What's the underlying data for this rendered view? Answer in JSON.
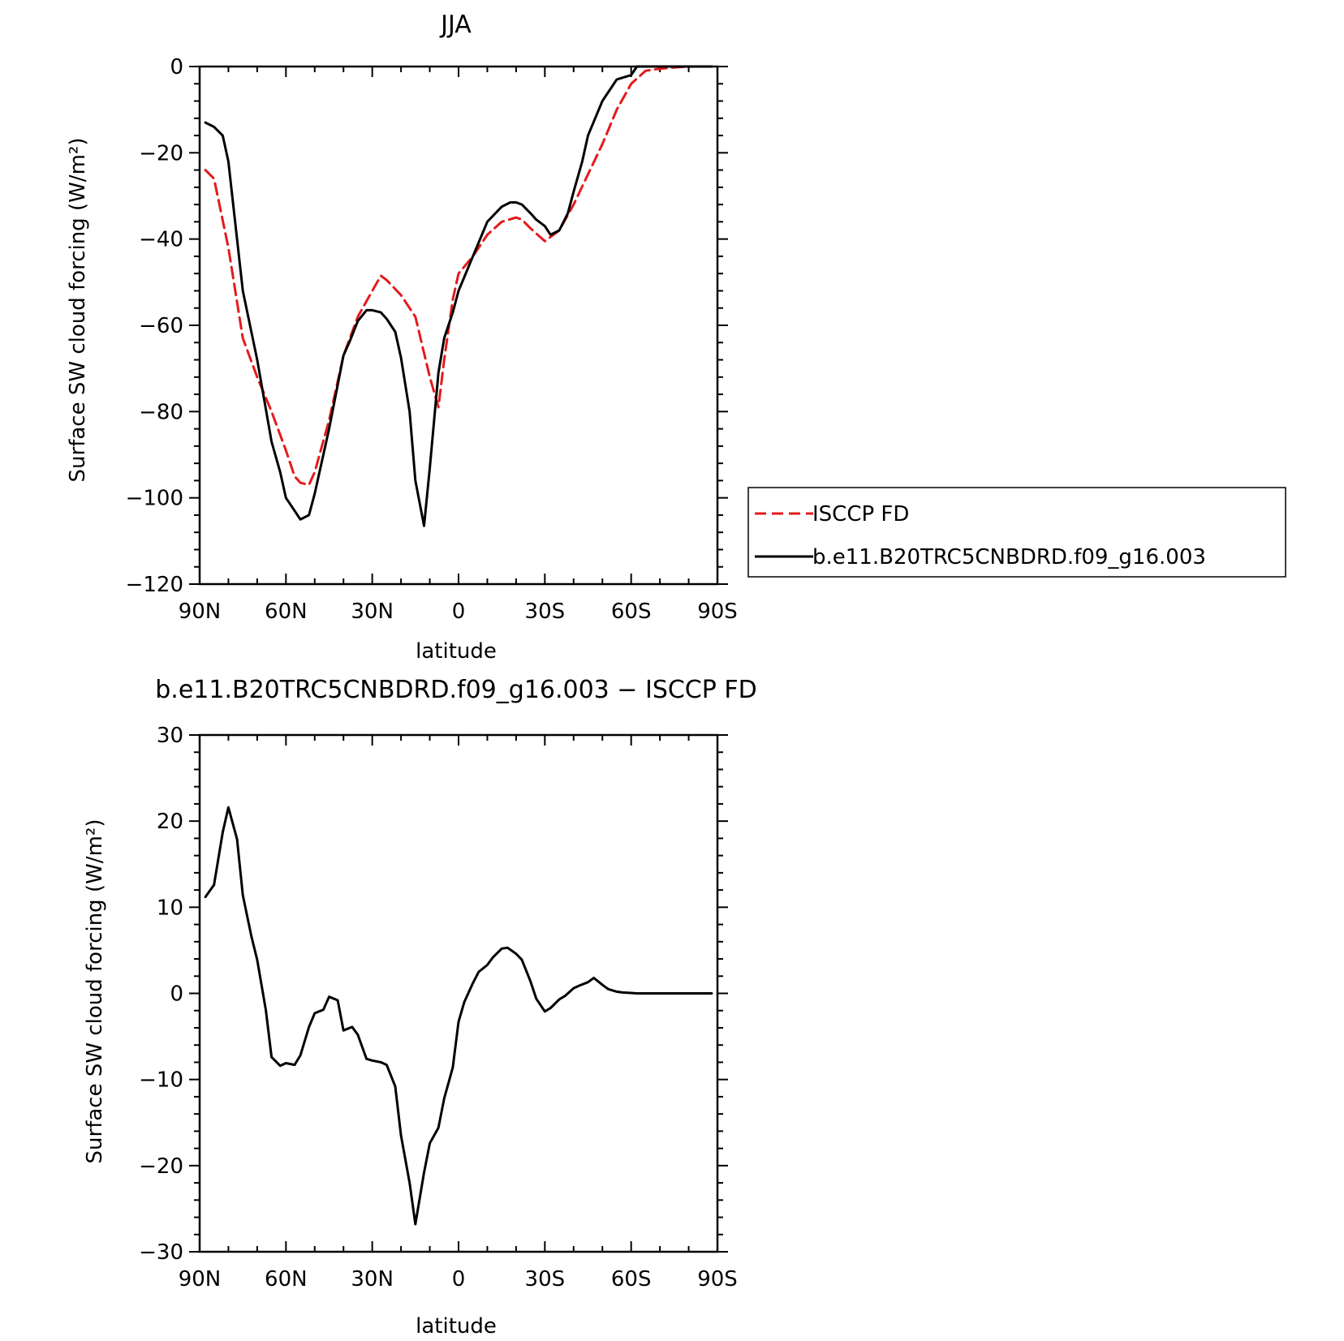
{
  "chart_data": [
    {
      "type": "line",
      "title": "JJA",
      "xlabel": "latitude",
      "ylabel": "Surface SW cloud forcing (W/m²)",
      "xlim": [
        90,
        -90
      ],
      "ylim": [
        -120,
        0
      ],
      "xticks": [
        90,
        60,
        30,
        0,
        -30,
        -60,
        -90
      ],
      "xtick_labels": [
        "90N",
        "60N",
        "30N",
        "0",
        "30S",
        "60S",
        "90S"
      ],
      "yticks": [
        0,
        -20,
        -40,
        -60,
        -80,
        -100,
        -120
      ],
      "ytick_labels": [
        "0",
        "−20",
        "−40",
        "−60",
        "−80",
        "−100",
        "−120"
      ],
      "legend_position": "right",
      "series": [
        {
          "name": "ISCCP FD",
          "color": "#e41a1c",
          "style": "dashed",
          "x": [
            88,
            85,
            80,
            75,
            70,
            65,
            60,
            57,
            55,
            52,
            50,
            45,
            40,
            35,
            30,
            27,
            25,
            20,
            15,
            10,
            7,
            5,
            2,
            0,
            -5,
            -10,
            -15,
            -20,
            -22,
            -25,
            -30,
            -35,
            -40,
            -45,
            -50,
            -55,
            -60,
            -65,
            -70,
            -75,
            -80,
            -85,
            -88
          ],
          "y": [
            -24,
            -26,
            -42,
            -63,
            -72,
            -80,
            -89,
            -95,
            -96.5,
            -97,
            -94,
            -82,
            -67,
            -58,
            -52,
            -48.5,
            -49.5,
            -53,
            -58,
            -72,
            -79,
            -68,
            -54,
            -48,
            -44,
            -39,
            -36,
            -35,
            -35.5,
            -37.5,
            -40.5,
            -38,
            -32,
            -25,
            -18,
            -10,
            -4,
            -1,
            -0.5,
            -0.2,
            0,
            0,
            0
          ]
        },
        {
          "name": "b.e11.B20TRC5CNBDRD.f09_g16.003",
          "color": "#000000",
          "style": "solid",
          "x": [
            88,
            85,
            82,
            80,
            75,
            70,
            65,
            62,
            60,
            57,
            55,
            52,
            50,
            45,
            40,
            38,
            35,
            32,
            30,
            27,
            25,
            22,
            20,
            17,
            15,
            12,
            10,
            7,
            5,
            2,
            0,
            -5,
            -10,
            -15,
            -18,
            -20,
            -22,
            -25,
            -27,
            -30,
            -32,
            -35,
            -38,
            -40,
            -43,
            -45,
            -50,
            -55,
            -60,
            -62,
            -65,
            -70,
            -75,
            -80,
            -85,
            -88
          ],
          "y": [
            -13,
            -14,
            -16,
            -22,
            -52,
            -68,
            -87,
            -94,
            -100,
            -103,
            -105,
            -104,
            -99,
            -84,
            -67,
            -64,
            -59,
            -56.5,
            -56.5,
            -57,
            -58.5,
            -61.5,
            -67.5,
            -80,
            -96,
            -106.5,
            -93,
            -71,
            -63,
            -57,
            -52,
            -44,
            -36,
            -32.5,
            -31.5,
            -31.5,
            -32,
            -34,
            -35.5,
            -37,
            -39,
            -38,
            -34,
            -29,
            -22,
            -16,
            -8,
            -3,
            -2,
            0,
            0,
            0,
            0,
            0,
            0,
            0
          ]
        }
      ]
    },
    {
      "type": "line",
      "title": "b.e11.B20TRC5CNBDRD.f09_g16.003 − ISCCP FD",
      "xlabel": "latitude",
      "ylabel": "Surface SW cloud forcing (W/m²)",
      "xlim": [
        90,
        -90
      ],
      "ylim": [
        -30,
        30
      ],
      "xticks": [
        90,
        60,
        30,
        0,
        -30,
        -60,
        -90
      ],
      "xtick_labels": [
        "90N",
        "60N",
        "30N",
        "0",
        "30S",
        "60S",
        "90S"
      ],
      "yticks": [
        30,
        20,
        10,
        0,
        -10,
        -20,
        -30
      ],
      "ytick_labels": [
        "30",
        "20",
        "10",
        "0",
        "−10",
        "−20",
        "−30"
      ],
      "series": [
        {
          "color": "#000000",
          "style": "solid",
          "x": [
            88,
            85,
            82,
            80,
            77,
            75,
            72,
            70,
            67,
            65,
            62,
            60,
            57,
            55,
            52,
            50,
            47,
            45,
            42,
            40,
            37,
            35,
            32,
            30,
            27,
            25,
            22,
            20,
            17,
            15,
            12,
            10,
            7,
            5,
            2,
            0,
            -2,
            -5,
            -7,
            -10,
            -12,
            -15,
            -17,
            -20,
            -22,
            -25,
            -27,
            -30,
            -32,
            -35,
            -37,
            -40,
            -42,
            -45,
            -47,
            -50,
            -52,
            -55,
            -57,
            -60,
            -62,
            -65,
            -67,
            -70,
            -72,
            -75,
            -80,
            -85,
            -88
          ],
          "y": [
            11.2,
            12.6,
            18.7,
            21.6,
            17.9,
            11.4,
            6.6,
            3.9,
            -1.9,
            -7.4,
            -8.4,
            -8.1,
            -8.3,
            -7.2,
            -3.9,
            -2.3,
            -1.9,
            -0.4,
            -0.8,
            -4.3,
            -3.9,
            -4.8,
            -7.6,
            -7.8,
            -8.0,
            -8.3,
            -10.8,
            -16.5,
            -22.0,
            -26.8,
            -20.8,
            -17.4,
            -15.6,
            -12.2,
            -8.6,
            -3.3,
            -1.0,
            1.2,
            2.5,
            3.3,
            4.2,
            5.2,
            5.3,
            4.6,
            3.9,
            1.4,
            -0.6,
            -2.1,
            -1.7,
            -0.7,
            -0.3,
            0.6,
            0.9,
            1.3,
            1.8,
            1.0,
            0.5,
            0.2,
            0.1,
            0.05,
            0,
            0,
            0,
            0,
            0,
            0,
            0,
            0,
            0
          ]
        }
      ]
    }
  ]
}
